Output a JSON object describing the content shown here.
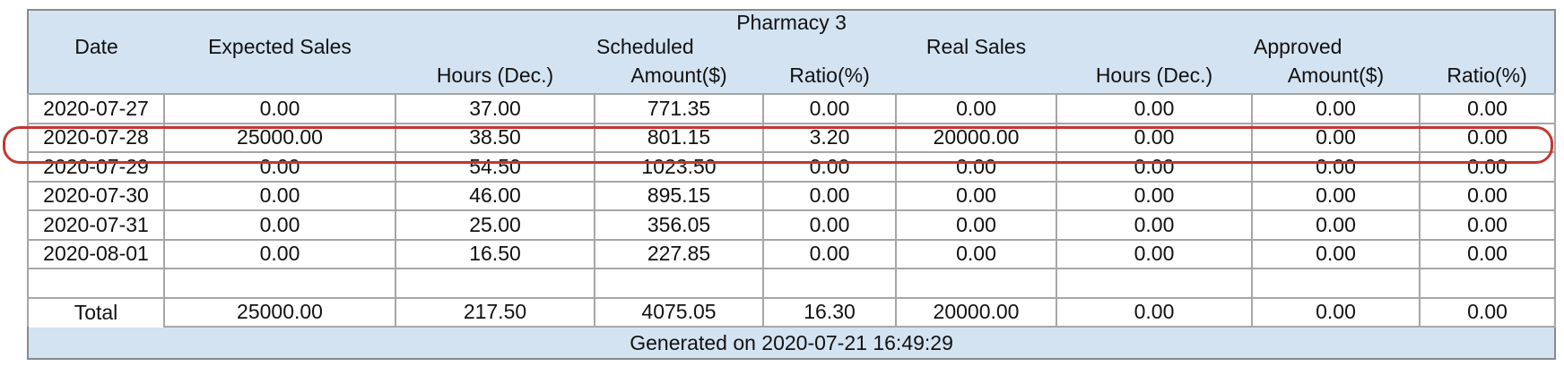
{
  "title": "Pharmacy 3",
  "header": {
    "col_date": "Date",
    "col_expected": "Expected Sales",
    "group_scheduled": "Scheduled",
    "col_real": "Real Sales",
    "group_approved": "Approved",
    "sub_hours": "Hours (Dec.)",
    "sub_amount": "Amount($)",
    "sub_ratio": "Ratio(%)"
  },
  "rows": [
    {
      "date": "2020-07-27",
      "expected": "0.00",
      "sch_hours": "37.00",
      "sch_amount": "771.35",
      "sch_ratio": "0.00",
      "real": "0.00",
      "app_hours": "0.00",
      "app_amount": "0.00",
      "app_ratio": "0.00",
      "highlighted": false
    },
    {
      "date": "2020-07-28",
      "expected": "25000.00",
      "sch_hours": "38.50",
      "sch_amount": "801.15",
      "sch_ratio": "3.20",
      "real": "20000.00",
      "app_hours": "0.00",
      "app_amount": "0.00",
      "app_ratio": "0.00",
      "highlighted": true
    },
    {
      "date": "2020-07-29",
      "expected": "0.00",
      "sch_hours": "54.50",
      "sch_amount": "1023.50",
      "sch_ratio": "0.00",
      "real": "0.00",
      "app_hours": "0.00",
      "app_amount": "0.00",
      "app_ratio": "0.00",
      "highlighted": false
    },
    {
      "date": "2020-07-30",
      "expected": "0.00",
      "sch_hours": "46.00",
      "sch_amount": "895.15",
      "sch_ratio": "0.00",
      "real": "0.00",
      "app_hours": "0.00",
      "app_amount": "0.00",
      "app_ratio": "0.00",
      "highlighted": false
    },
    {
      "date": "2020-07-31",
      "expected": "0.00",
      "sch_hours": "25.00",
      "sch_amount": "356.05",
      "sch_ratio": "0.00",
      "real": "0.00",
      "app_hours": "0.00",
      "app_amount": "0.00",
      "app_ratio": "0.00",
      "highlighted": false
    },
    {
      "date": "2020-08-01",
      "expected": "0.00",
      "sch_hours": "16.50",
      "sch_amount": "227.85",
      "sch_ratio": "0.00",
      "real": "0.00",
      "app_hours": "0.00",
      "app_amount": "0.00",
      "app_ratio": "0.00",
      "highlighted": false
    },
    {
      "date": "",
      "expected": "",
      "sch_hours": "",
      "sch_amount": "",
      "sch_ratio": "",
      "real": "",
      "app_hours": "",
      "app_amount": "",
      "app_ratio": "",
      "highlighted": false
    },
    {
      "date": "Total",
      "expected": "25000.00",
      "sch_hours": "217.50",
      "sch_amount": "4075.05",
      "sch_ratio": "16.30",
      "real": "20000.00",
      "app_hours": "0.00",
      "app_amount": "0.00",
      "app_ratio": "0.00",
      "highlighted": false,
      "is_total": true
    }
  ],
  "footer": {
    "generated": "Generated on 2020-07-21 16:49:29"
  },
  "colors": {
    "header_bg": "#d4e3f2",
    "footer_bg": "#d4e3f2",
    "grid": "#a6a6a6",
    "outer_border": "#8a8a8a",
    "highlight": "#c4372e",
    "text": "#111111"
  }
}
